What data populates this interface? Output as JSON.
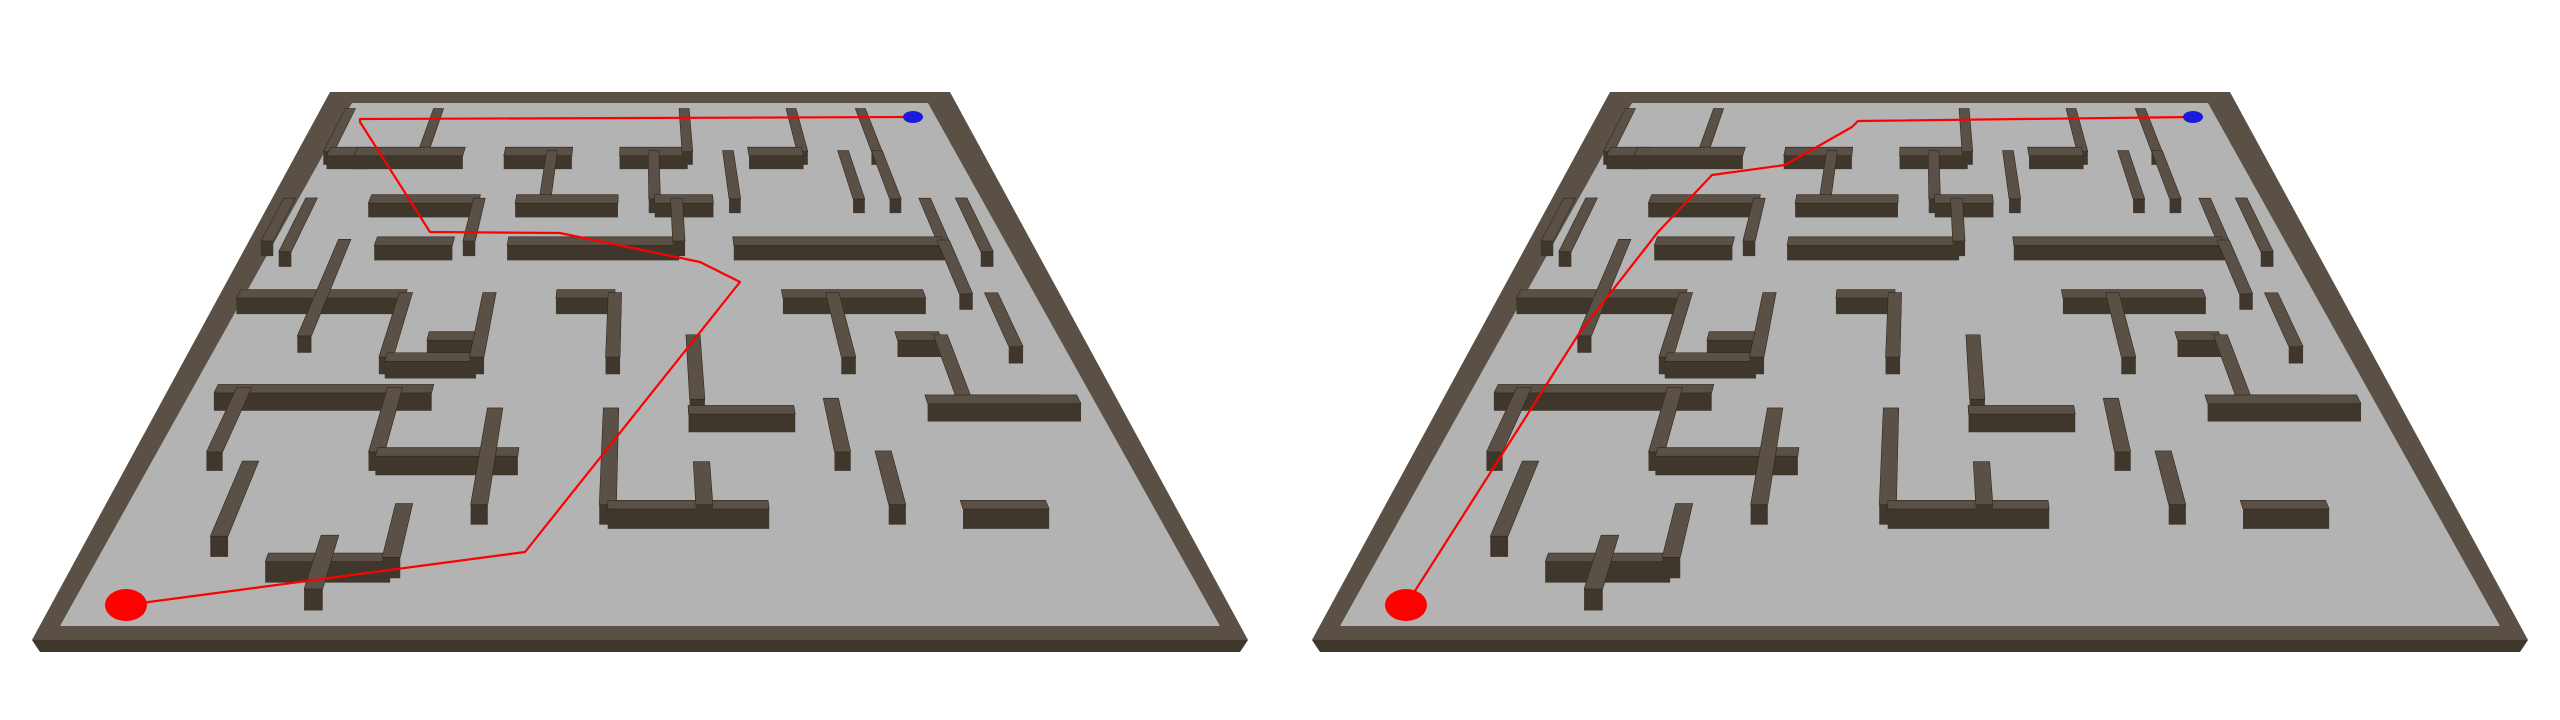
{
  "scene": {
    "colors": {
      "background": "#ffffff",
      "floor": "#b3b3b3",
      "wall_top": "#5a5045",
      "wall_face": "#3f362c",
      "path": "#ff0000",
      "start_marker": "#ff0000",
      "goal_marker": "#1a1adb"
    },
    "panels": [
      {
        "id": "left",
        "path_style": "long-route"
      },
      {
        "id": "right",
        "path_style": "direct-route"
      }
    ]
  }
}
